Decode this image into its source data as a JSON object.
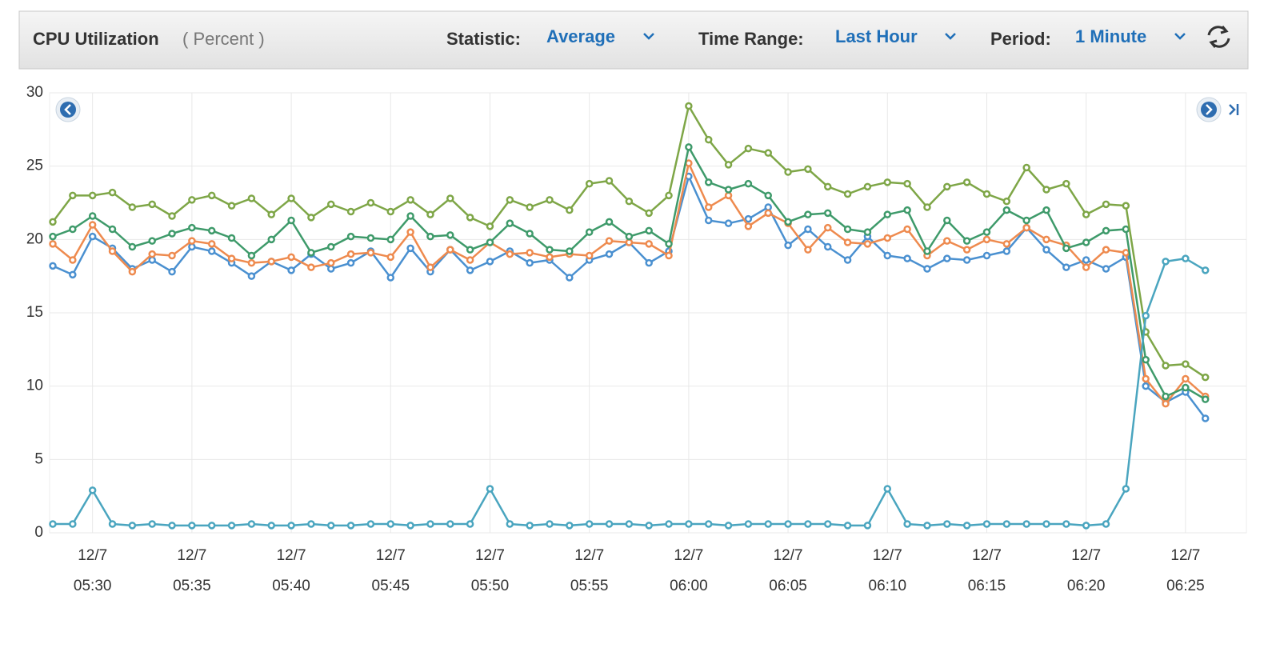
{
  "header": {
    "title": "CPU Utilization",
    "unit": "( Percent )",
    "statistic_label": "Statistic:",
    "statistic": "Average",
    "time_range_label": "Time Range:",
    "time_range": "Last Hour",
    "period_label": "Period:",
    "period": "1 Minute"
  },
  "chart_data": {
    "type": "line",
    "ylim": [
      0,
      30
    ],
    "yticks": [
      0,
      5,
      10,
      15,
      20,
      25,
      30
    ],
    "grid": true,
    "categories": [
      null,
      null,
      {
        "date": "12/7",
        "time": "05:30"
      },
      null,
      null,
      null,
      null,
      {
        "date": "12/7",
        "time": "05:35"
      },
      null,
      null,
      null,
      null,
      {
        "date": "12/7",
        "time": "05:40"
      },
      null,
      null,
      null,
      null,
      {
        "date": "12/7",
        "time": "05:45"
      },
      null,
      null,
      null,
      null,
      {
        "date": "12/7",
        "time": "05:50"
      },
      null,
      null,
      null,
      null,
      {
        "date": "12/7",
        "time": "05:55"
      },
      null,
      null,
      null,
      null,
      {
        "date": "12/7",
        "time": "06:00"
      },
      null,
      null,
      null,
      null,
      {
        "date": "12/7",
        "time": "06:05"
      },
      null,
      null,
      null,
      null,
      {
        "date": "12/7",
        "time": "06:10"
      },
      null,
      null,
      null,
      null,
      {
        "date": "12/7",
        "time": "06:15"
      },
      null,
      null,
      null,
      null,
      {
        "date": "12/7",
        "time": "06:20"
      },
      null,
      null,
      null,
      null,
      {
        "date": "12/7",
        "time": "06:25"
      },
      null
    ],
    "series": [
      {
        "color": "#4a90d0",
        "values": [
          18.2,
          17.6,
          20.2,
          19.4,
          18.0,
          18.6,
          17.8,
          19.5,
          19.2,
          18.4,
          17.5,
          18.5,
          17.9,
          19.0,
          18.0,
          18.4,
          19.2,
          17.4,
          19.4,
          17.8,
          19.3,
          17.9,
          18.5,
          19.2,
          18.4,
          18.6,
          17.4,
          18.6,
          19.0,
          19.8,
          18.4,
          19.2,
          24.3,
          21.3,
          21.1,
          21.4,
          22.2,
          19.6,
          20.7,
          19.5,
          18.6,
          20.2,
          18.9,
          18.7,
          18.0,
          18.7,
          18.6,
          18.9,
          19.2,
          20.8,
          19.3,
          18.1,
          18.6,
          18.0,
          18.8,
          10.0,
          8.9,
          9.6,
          7.8
        ]
      },
      {
        "color": "#ee8a4e",
        "values": [
          19.7,
          18.6,
          21.0,
          19.2,
          17.8,
          19.0,
          18.9,
          19.9,
          19.7,
          18.7,
          18.4,
          18.5,
          18.8,
          18.1,
          18.4,
          19.0,
          19.1,
          18.8,
          20.5,
          18.1,
          19.3,
          18.6,
          19.8,
          19.0,
          19.1,
          18.8,
          19.0,
          18.9,
          19.9,
          19.8,
          19.7,
          18.9,
          25.2,
          22.2,
          23.0,
          20.9,
          21.8,
          21.1,
          19.3,
          20.8,
          19.8,
          19.7,
          20.1,
          20.7,
          18.9,
          19.9,
          19.3,
          20.0,
          19.7,
          20.8,
          20.0,
          19.6,
          18.1,
          19.3,
          19.1,
          10.5,
          8.8,
          10.5,
          9.3
        ]
      },
      {
        "color": "#3e9a6a",
        "values": [
          20.2,
          20.7,
          21.6,
          20.7,
          19.5,
          19.9,
          20.4,
          20.8,
          20.6,
          20.1,
          18.9,
          20.0,
          21.3,
          19.1,
          19.5,
          20.2,
          20.1,
          20.0,
          21.6,
          20.2,
          20.3,
          19.3,
          19.8,
          21.1,
          20.4,
          19.3,
          19.2,
          20.5,
          21.2,
          20.2,
          20.6,
          19.7,
          26.3,
          23.9,
          23.4,
          23.8,
          23.0,
          21.2,
          21.7,
          21.8,
          20.7,
          20.5,
          21.7,
          22.0,
          19.2,
          21.3,
          19.9,
          20.5,
          22.0,
          21.3,
          22.0,
          19.4,
          19.8,
          20.6,
          20.7,
          11.8,
          9.3,
          9.9,
          9.1
        ]
      },
      {
        "color": "#7ea647",
        "values": [
          21.2,
          23.0,
          23.0,
          23.2,
          22.2,
          22.4,
          21.6,
          22.7,
          23.0,
          22.3,
          22.8,
          21.7,
          22.8,
          21.5,
          22.4,
          21.9,
          22.5,
          21.9,
          22.7,
          21.7,
          22.8,
          21.5,
          20.9,
          22.7,
          22.2,
          22.7,
          22.0,
          23.8,
          24.0,
          22.6,
          21.8,
          23.0,
          29.1,
          26.8,
          25.1,
          26.2,
          25.9,
          24.6,
          24.8,
          23.6,
          23.1,
          23.6,
          23.9,
          23.8,
          22.2,
          23.6,
          23.9,
          23.1,
          22.6,
          24.9,
          23.4,
          23.8,
          21.7,
          22.4,
          22.3,
          13.7,
          11.4,
          11.5,
          10.6
        ]
      },
      {
        "color": "#4aa5bf",
        "values": [
          0.6,
          0.6,
          2.9,
          0.6,
          0.5,
          0.6,
          0.5,
          0.5,
          0.5,
          0.5,
          0.6,
          0.5,
          0.5,
          0.6,
          0.5,
          0.5,
          0.6,
          0.6,
          0.5,
          0.6,
          0.6,
          0.6,
          3.0,
          0.6,
          0.5,
          0.6,
          0.5,
          0.6,
          0.6,
          0.6,
          0.5,
          0.6,
          0.6,
          0.6,
          0.5,
          0.6,
          0.6,
          0.6,
          0.6,
          0.6,
          0.5,
          0.5,
          3.0,
          0.6,
          0.5,
          0.6,
          0.5,
          0.6,
          0.6,
          0.6,
          0.6,
          0.6,
          0.5,
          0.6,
          3.0,
          14.8,
          18.5,
          18.7,
          17.9
        ]
      }
    ]
  }
}
